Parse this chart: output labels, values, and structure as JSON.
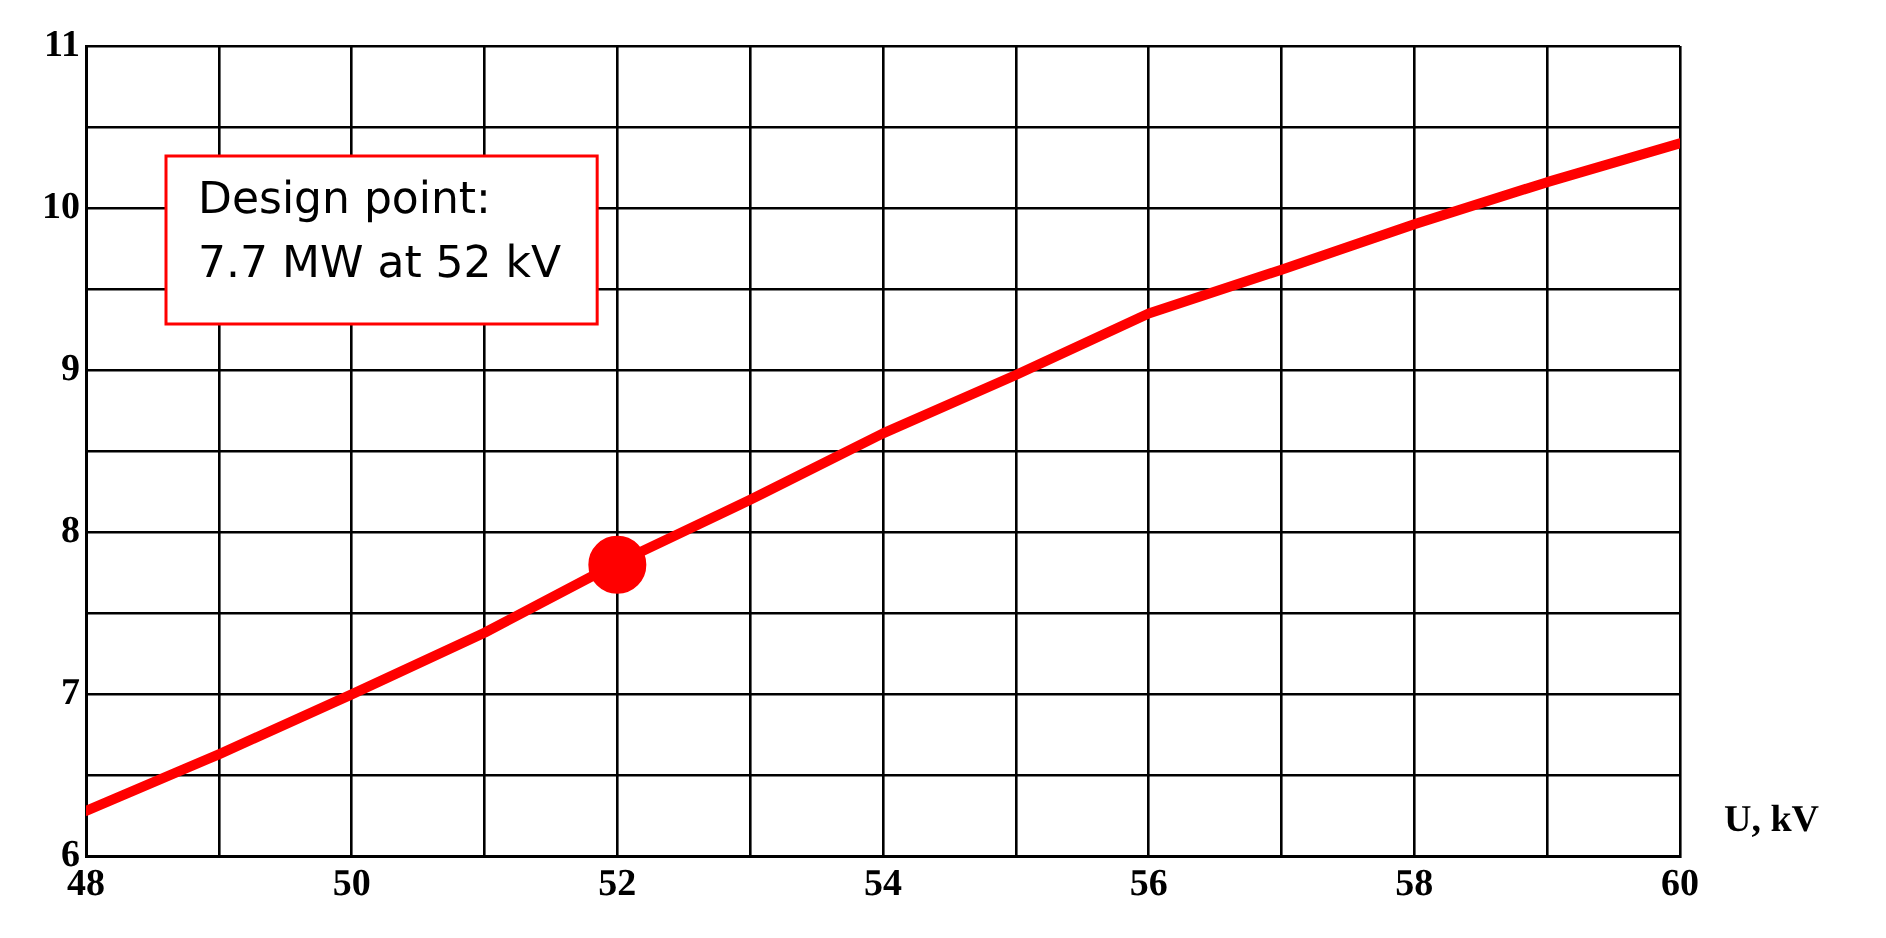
{
  "chart_data": {
    "type": "line",
    "xlabel": "U, kV",
    "xlim": [
      48,
      60
    ],
    "ylim": [
      6,
      11
    ],
    "xticks": [
      48,
      {
        "value": 49,
        "label": null
      },
      50,
      {
        "value": 51,
        "label": null
      },
      52,
      {
        "value": 53,
        "label": null
      },
      54,
      {
        "value": 55,
        "label": null
      },
      56,
      {
        "value": 57,
        "label": null
      },
      58,
      {
        "value": 59,
        "label": null
      },
      60
    ],
    "yticks": [
      6,
      {
        "value": 6.5,
        "label": null
      },
      7,
      {
        "value": 7.5,
        "label": null
      },
      8,
      {
        "value": 8.5,
        "label": null
      },
      9,
      {
        "value": 9.5,
        "label": null
      },
      10,
      {
        "value": 10.5,
        "label": null
      },
      11
    ],
    "grid": true,
    "legend": false,
    "marker": "none",
    "line_style": "solid",
    "series": [
      {
        "type": "line",
        "color": "#ff0000",
        "x": [
          48,
          49,
          50,
          51,
          52,
          53,
          54,
          55,
          56,
          57,
          58,
          59,
          60
        ],
        "values": [
          6.28,
          6.63,
          7.0,
          7.38,
          7.81,
          8.2,
          8.61,
          8.97,
          9.35,
          9.62,
          9.9,
          10.16,
          10.4
        ]
      },
      {
        "type": "scatter",
        "color": "#ff0000",
        "marker": "circle",
        "x": [
          52
        ],
        "values": [
          7.8
        ]
      }
    ],
    "annotations": [
      "Design point:\n7.7 MW at 52 kV"
    ]
  }
}
